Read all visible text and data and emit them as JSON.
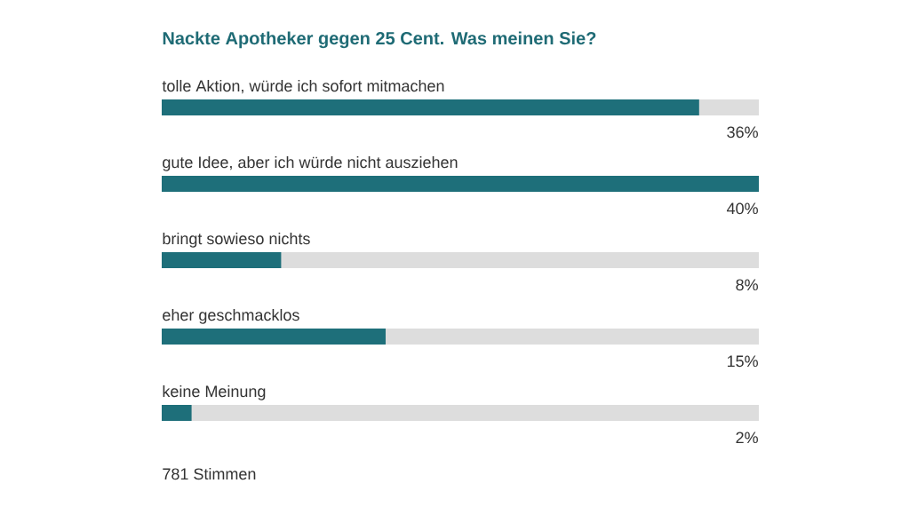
{
  "chart_data": {
    "type": "bar",
    "orientation": "horizontal",
    "title": "Nackte Apotheker gegen 25 Cent. Was meinen Sie?",
    "categories": [
      "tolle Aktion, würde ich sofort mitmachen",
      "gute Idee, aber ich würde nicht ausziehen",
      "bringt sowieso nichts",
      "eher geschmacklos",
      "keine Meinung"
    ],
    "values": [
      36,
      40,
      8,
      15,
      2
    ],
    "value_labels": [
      "36%",
      "40%",
      "8%",
      "15%",
      "2%"
    ],
    "color": "#1e6f7a",
    "annotations": [
      "781 Stimmen"
    ]
  }
}
